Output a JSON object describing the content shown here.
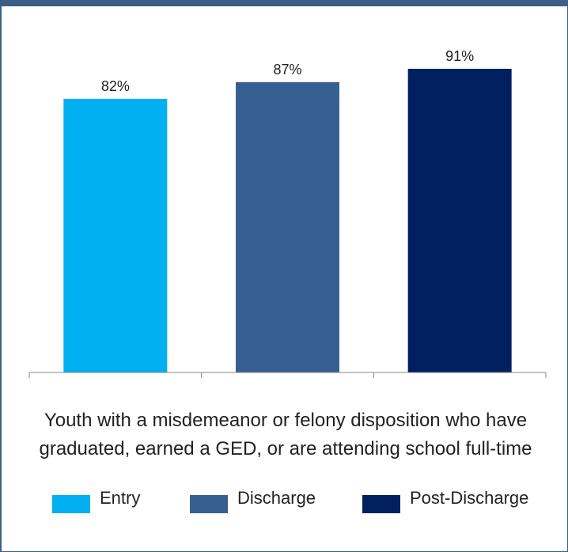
{
  "chart_data": {
    "type": "bar",
    "categories": [
      "Entry",
      "Discharge",
      "Post-Discharge"
    ],
    "values": [
      82,
      87,
      91
    ],
    "data_labels": [
      "82%",
      "87%",
      "91%"
    ],
    "colors": [
      "#00b0f0",
      "#376092",
      "#002060"
    ],
    "ylim": [
      0,
      100
    ],
    "grid": false,
    "caption_lines": [
      "Youth with a misdemeanor or felony disposition who have",
      "graduated, earned a GED, or are attending school full-time"
    ],
    "legend": {
      "placement": "bottom",
      "entries": [
        "Entry",
        "Discharge",
        "Post-Discharge"
      ]
    }
  }
}
